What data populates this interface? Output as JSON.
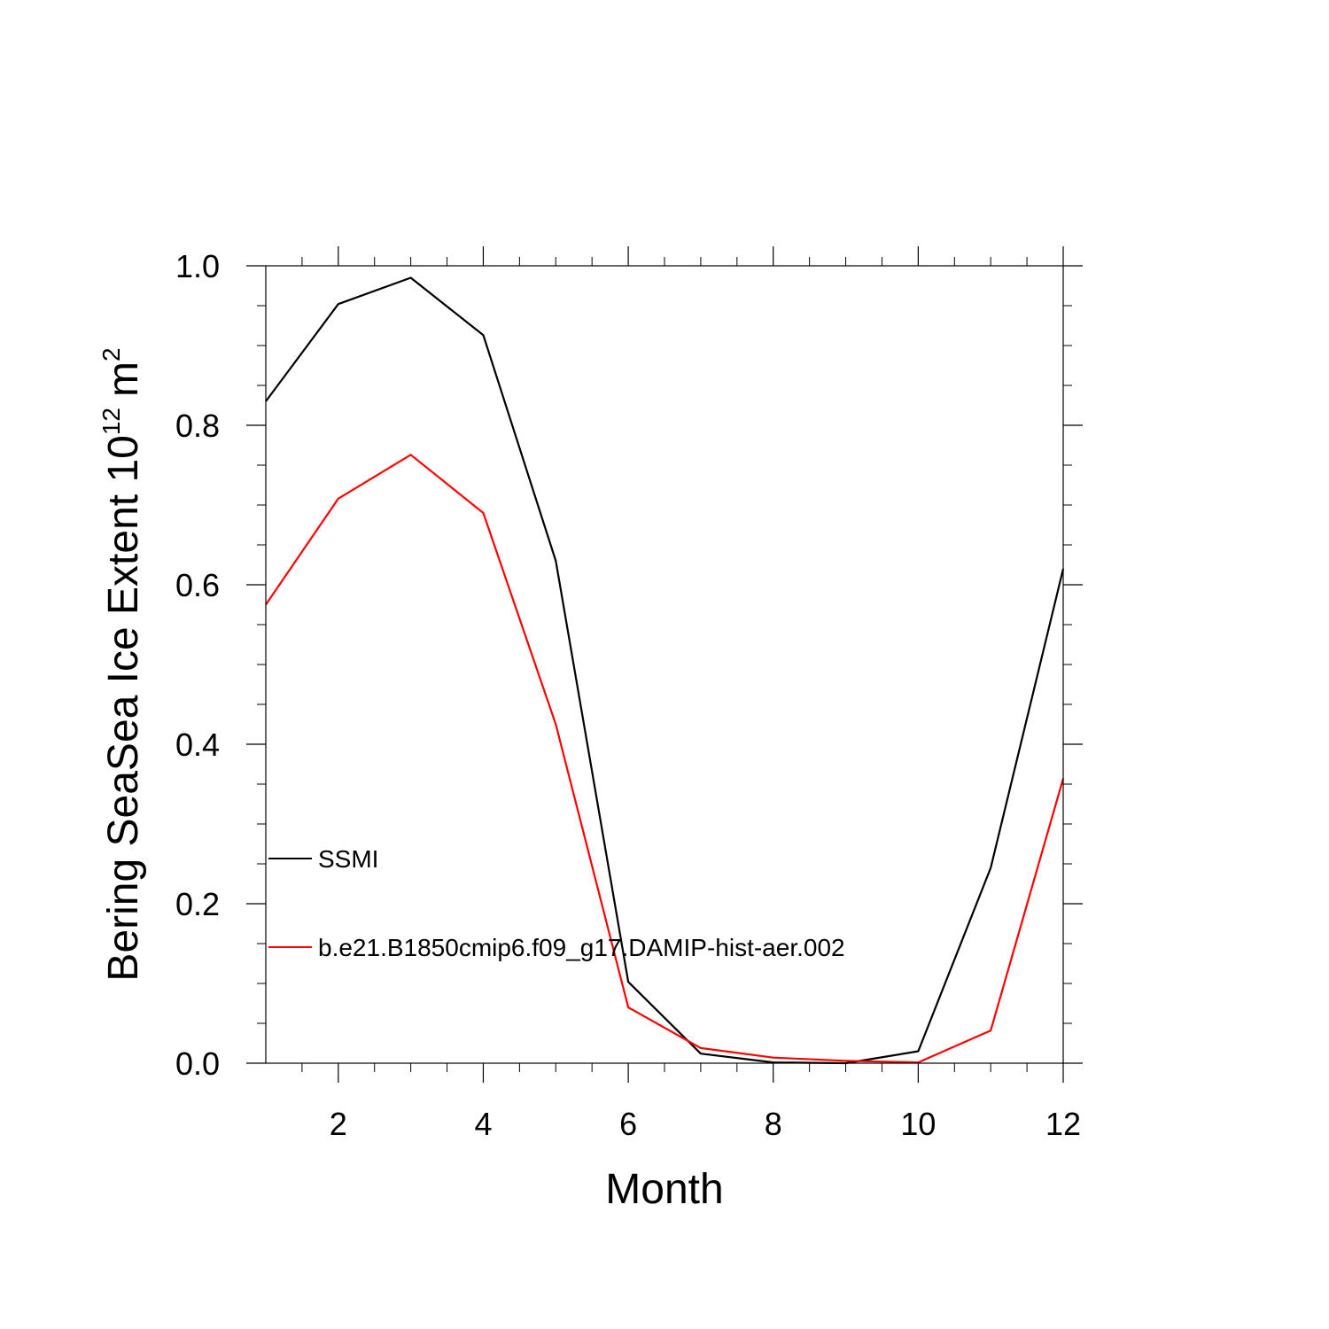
{
  "chart_data": {
    "type": "line",
    "xlabel": "Month",
    "ylabel": "Bering SeaSea Ice Extent 10",
    "ylabel_exponent": "12",
    "ylabel_unit": "m",
    "ylabel_unit_exponent": "2",
    "xlim": [
      1,
      12
    ],
    "ylim": [
      0,
      1.0
    ],
    "x_ticks": [
      2,
      4,
      6,
      8,
      10,
      12
    ],
    "x_tick_labels": [
      "2",
      "4",
      "6",
      "8",
      "10",
      "12"
    ],
    "y_ticks": [
      0,
      0.2,
      0.4,
      0.6,
      0.8,
      1.0
    ],
    "y_tick_labels": [
      "0.0",
      "0.2",
      "0.4",
      "0.6",
      "0.8",
      "1.0"
    ],
    "grid": false,
    "legend_position": "left",
    "x": [
      1,
      2,
      3,
      4,
      5,
      6,
      7,
      8,
      9,
      10,
      11,
      12
    ],
    "series": [
      {
        "name": "SSMI",
        "color": "#000000",
        "values": [
          0.83,
          0.952,
          0.985,
          0.913,
          0.63,
          0.102,
          0.012,
          0.001,
          0.0,
          0.015,
          0.245,
          0.62
        ]
      },
      {
        "name": "b.e21.B1850cmip6.f09_g17.DAMIP-hist-aer.002",
        "color": "#ff0000",
        "values": [
          0.575,
          0.708,
          0.763,
          0.69,
          0.425,
          0.07,
          0.019,
          0.007,
          0.003,
          0.001,
          0.041,
          0.357
        ]
      }
    ]
  }
}
